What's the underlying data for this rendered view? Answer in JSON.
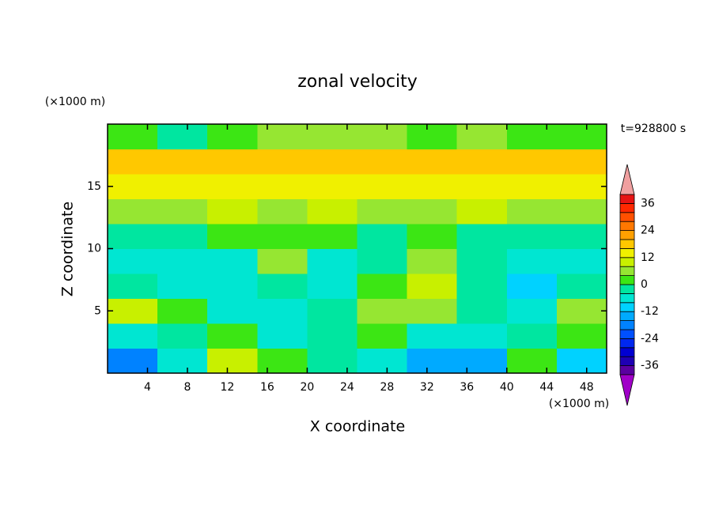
{
  "chart_data": {
    "type": "contour",
    "title": "zonal velocity",
    "x_label": "X coordinate",
    "y_label": "Z coordinate",
    "x_unit": "(×1000 m)",
    "y_unit": "(×1000 m)",
    "annotation": "t=928800 s",
    "xlim": [
      0,
      50
    ],
    "ylim": [
      0,
      20
    ],
    "xticks": [
      4,
      8,
      12,
      16,
      20,
      24,
      28,
      32,
      36,
      40,
      44,
      48
    ],
    "yticks": [
      5,
      10,
      15
    ],
    "x_edges": [
      0,
      5,
      10,
      15,
      20,
      25,
      30,
      35,
      40,
      45,
      50
    ],
    "z_edges": [
      0,
      2,
      4,
      6,
      8,
      10,
      12,
      14,
      16,
      18,
      20
    ],
    "z": [
      [
        -18,
        -6,
        10,
        2,
        -4,
        -6,
        -16,
        -14,
        2,
        -10
      ],
      [
        -8,
        -4,
        2,
        -6,
        -2,
        2,
        -6,
        -6,
        -4,
        2
      ],
      [
        8,
        2,
        -6,
        -6,
        -4,
        4,
        6,
        -2,
        -8,
        4
      ],
      [
        -2,
        -6,
        -8,
        -2,
        -6,
        2,
        8,
        -2,
        -10,
        -4
      ],
      [
        -6,
        -8,
        -8,
        6,
        -6,
        -4,
        4,
        -2,
        -8,
        -8
      ],
      [
        -2,
        -2,
        2,
        2,
        2,
        -2,
        2,
        -2,
        -2,
        -2
      ],
      [
        6,
        6,
        8,
        6,
        8,
        6,
        6,
        8,
        6,
        6
      ],
      [
        12,
        12,
        13,
        12,
        12,
        12,
        12,
        13,
        12,
        12
      ],
      [
        17,
        18,
        17,
        16,
        16,
        16,
        17,
        18,
        18,
        17
      ],
      [
        2,
        -2,
        2,
        4,
        4,
        4,
        2,
        4,
        2,
        2
      ]
    ],
    "levels": [
      -40,
      -36,
      -32,
      -28,
      -24,
      -20,
      -16,
      -12,
      -8,
      -4,
      0,
      4,
      8,
      12,
      16,
      20,
      24,
      28,
      32,
      36,
      40
    ],
    "colors": [
      "#a000c8",
      "#5a00a0",
      "#1e00b4",
      "#0000d2",
      "#0028f0",
      "#0050ff",
      "#0082ff",
      "#00aaff",
      "#00d2ff",
      "#00e6d2",
      "#00e6a0",
      "#3ce614",
      "#96e632",
      "#c8f000",
      "#f0f000",
      "#ffc800",
      "#ffa000",
      "#ff7800",
      "#ff5000",
      "#ff2800",
      "#e61414",
      "#f0a0a0"
    ],
    "colorbar_ticks": [
      -36,
      -24,
      -12,
      0,
      12,
      24,
      36
    ]
  }
}
